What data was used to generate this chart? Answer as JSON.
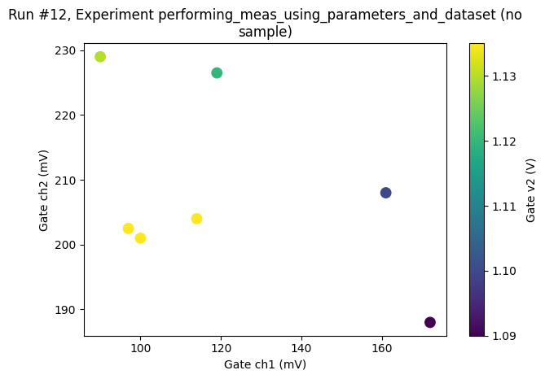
{
  "title": "Run #12, Experiment performing_meas_using_parameters_and_dataset (no\nsample)",
  "xlabel": "Gate ch1 (mV)",
  "ylabel": "Gate ch2 (mV)",
  "colorbar_label": "Gate v2 (V)",
  "x": [
    90,
    119,
    97,
    100,
    114,
    161,
    172
  ],
  "y": [
    229,
    226.5,
    202.5,
    201,
    204,
    208,
    188
  ],
  "c": [
    1.13,
    1.12,
    1.135,
    1.135,
    1.135,
    1.1,
    1.09
  ],
  "vmin": 1.09,
  "vmax": 1.135,
  "cmap": "viridis",
  "marker_size": 80,
  "colorbar_ticks": [
    1.09,
    1.1,
    1.11,
    1.12,
    1.13
  ],
  "figsize": [
    6.51,
    4.76
  ],
  "dpi": 100,
  "title_fontsize": 12
}
